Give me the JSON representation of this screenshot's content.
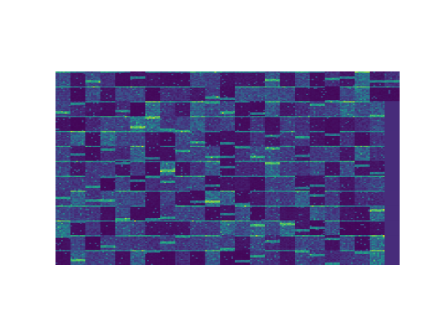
{
  "chart_data": {
    "type": "heatmap",
    "title": "",
    "xlabel": "",
    "ylabel": "",
    "colormap": "viridis",
    "colormap_colors": [
      "#440154",
      "#472d7b",
      "#3b528b",
      "#2c728e",
      "#21918c",
      "#28ae80",
      "#5ec962",
      "#addc30",
      "#fde725"
    ],
    "background_color": "#ffffff",
    "axes_visible": false,
    "grid": false,
    "legend": "none",
    "tile_grid": {
      "columns": 23,
      "rows": 13
    },
    "tiles_filled": 288,
    "empty_fill_color": "#472c7a",
    "tile_subgrid": {
      "columns": 8,
      "rows": 12
    },
    "value_range": [
      0,
      1
    ],
    "seed": 7321
  }
}
